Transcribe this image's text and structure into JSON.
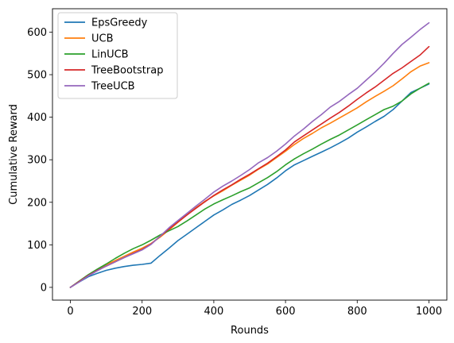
{
  "chart_data": {
    "type": "line",
    "xlabel": "Rounds",
    "ylabel": "Cumulative Reward",
    "xlim": [
      -50,
      1050
    ],
    "ylim": [
      -30,
      655
    ],
    "xticks": [
      0,
      200,
      400,
      600,
      800,
      1000
    ],
    "yticks": [
      0,
      100,
      200,
      300,
      400,
      500,
      600
    ],
    "grid": false,
    "legend_position": "top-left",
    "series": [
      {
        "name": "EpsGreedy",
        "color": "#1f77b4",
        "x": [
          0,
          25,
          50,
          75,
          100,
          125,
          150,
          175,
          200,
          225,
          250,
          275,
          300,
          325,
          350,
          375,
          400,
          425,
          450,
          475,
          500,
          525,
          550,
          575,
          600,
          625,
          650,
          675,
          700,
          725,
          750,
          775,
          800,
          825,
          850,
          875,
          900,
          925,
          950,
          975,
          1000
        ],
        "values": [
          0,
          13,
          25,
          33,
          40,
          45,
          49,
          52,
          54,
          57,
          75,
          92,
          110,
          125,
          140,
          155,
          170,
          182,
          195,
          205,
          216,
          229,
          242,
          257,
          274,
          288,
          298,
          308,
          318,
          328,
          339,
          351,
          365,
          377,
          390,
          402,
          418,
          438,
          458,
          468,
          478
        ]
      },
      {
        "name": "UCB",
        "color": "#ff7f0e",
        "x": [
          0,
          25,
          50,
          75,
          100,
          125,
          150,
          175,
          200,
          225,
          250,
          275,
          300,
          325,
          350,
          375,
          400,
          425,
          450,
          475,
          500,
          525,
          550,
          575,
          600,
          625,
          650,
          675,
          700,
          725,
          750,
          775,
          800,
          825,
          850,
          875,
          900,
          925,
          950,
          975,
          1000
        ],
        "values": [
          0,
          14,
          28,
          42,
          53,
          63,
          73,
          83,
          92,
          103,
          118,
          135,
          153,
          170,
          187,
          202,
          215,
          227,
          240,
          252,
          264,
          278,
          290,
          305,
          320,
          336,
          350,
          362,
          375,
          386,
          398,
          410,
          422,
          436,
          449,
          461,
          474,
          490,
          507,
          520,
          528
        ]
      },
      {
        "name": "LinUCB",
        "color": "#2ca02c",
        "x": [
          0,
          25,
          50,
          75,
          100,
          125,
          150,
          175,
          200,
          225,
          250,
          275,
          300,
          325,
          350,
          375,
          400,
          425,
          450,
          475,
          500,
          525,
          550,
          575,
          600,
          625,
          650,
          675,
          700,
          725,
          750,
          775,
          800,
          825,
          850,
          875,
          900,
          925,
          950,
          975,
          1000
        ],
        "values": [
          0,
          15,
          30,
          43,
          55,
          68,
          80,
          91,
          100,
          111,
          123,
          133,
          143,
          156,
          170,
          184,
          196,
          206,
          215,
          225,
          234,
          246,
          258,
          272,
          288,
          302,
          314,
          325,
          337,
          348,
          358,
          370,
          382,
          394,
          406,
          418,
          426,
          438,
          455,
          468,
          480
        ]
      },
      {
        "name": "TreeBootstrap",
        "color": "#d62728",
        "x": [
          0,
          25,
          50,
          75,
          100,
          125,
          150,
          175,
          200,
          225,
          250,
          275,
          300,
          325,
          350,
          375,
          400,
          425,
          450,
          475,
          500,
          525,
          550,
          575,
          600,
          625,
          650,
          675,
          700,
          725,
          750,
          775,
          800,
          825,
          850,
          875,
          900,
          925,
          950,
          975,
          1000
        ],
        "values": [
          0,
          14,
          28,
          40,
          50,
          60,
          70,
          80,
          89,
          102,
          120,
          137,
          154,
          170,
          186,
          201,
          216,
          229,
          241,
          254,
          266,
          279,
          292,
          307,
          323,
          342,
          356,
          370,
          384,
          398,
          411,
          426,
          442,
          457,
          471,
          487,
          503,
          516,
          531,
          546,
          566
        ]
      },
      {
        "name": "TreeUCB",
        "color": "#9467bd",
        "x": [
          0,
          25,
          50,
          75,
          100,
          125,
          150,
          175,
          200,
          225,
          250,
          275,
          300,
          325,
          350,
          375,
          400,
          425,
          450,
          475,
          500,
          525,
          550,
          575,
          600,
          625,
          650,
          675,
          700,
          725,
          750,
          775,
          800,
          825,
          850,
          875,
          900,
          925,
          950,
          975,
          1000
        ],
        "values": [
          0,
          13,
          27,
          39,
          50,
          60,
          70,
          79,
          88,
          101,
          120,
          140,
          157,
          174,
          191,
          207,
          224,
          238,
          250,
          263,
          277,
          293,
          305,
          320,
          337,
          356,
          372,
          390,
          406,
          424,
          437,
          453,
          468,
          487,
          506,
          527,
          550,
          571,
          588,
          606,
          622
        ]
      }
    ]
  }
}
